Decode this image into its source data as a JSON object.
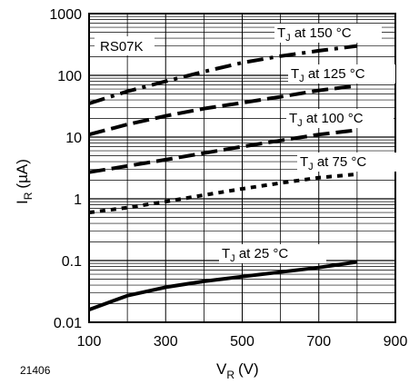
{
  "chart_data": {
    "type": "line",
    "figure_id": "21406",
    "part_label": "RS07K",
    "xlabel": {
      "main": "V",
      "sub": "R",
      "unit": "(V)"
    },
    "ylabel": {
      "main": "I",
      "sub": "R",
      "unit": "(µA)"
    },
    "xlim": [
      100,
      900
    ],
    "ylim": [
      0.01,
      1000
    ],
    "y_scale": "log",
    "grid": true,
    "x_ticks": [
      "100",
      "300",
      "500",
      "700",
      "900"
    ],
    "y_ticks": [
      "0.01",
      "0.1",
      "1",
      "10",
      "100",
      "1000"
    ],
    "series": [
      {
        "name": "T_J at 150 °C",
        "label_main": "T",
        "label_sub": "J",
        "label_rest": " at 150 °C",
        "style": "dash-dot",
        "x": [
          100,
          200,
          300,
          400,
          500,
          600,
          700,
          800
        ],
        "y": [
          35,
          55,
          80,
          115,
          160,
          205,
          250,
          300
        ]
      },
      {
        "name": "T_J at 125 °C",
        "label_main": "T",
        "label_sub": "J",
        "label_rest": " at 125 °C",
        "style": "long-dash",
        "x": [
          100,
          200,
          300,
          400,
          500,
          600,
          700,
          800
        ],
        "y": [
          11,
          16,
          22,
          29,
          36,
          45,
          57,
          68
        ]
      },
      {
        "name": "T_J at 100 °C",
        "label_main": "T",
        "label_sub": "J",
        "label_rest": " at 100 °C",
        "style": "long-dash",
        "x": [
          100,
          200,
          300,
          400,
          500,
          600,
          700,
          800
        ],
        "y": [
          2.7,
          3.4,
          4.3,
          5.5,
          7.0,
          8.8,
          11,
          13
        ]
      },
      {
        "name": "T_J at 75 °C",
        "label_main": "T",
        "label_sub": "J",
        "label_rest": " at 75 °C",
        "style": "short-dash",
        "x": [
          100,
          200,
          300,
          400,
          500,
          600,
          700,
          800
        ],
        "y": [
          0.6,
          0.72,
          0.9,
          1.15,
          1.45,
          1.8,
          2.2,
          2.5
        ]
      },
      {
        "name": "T_J at 25 °C",
        "label_main": "T",
        "label_sub": "J",
        "label_rest": " at 25 °C",
        "style": "solid",
        "x": [
          100,
          200,
          300,
          400,
          500,
          600,
          700,
          800
        ],
        "y": [
          0.016,
          0.027,
          0.037,
          0.046,
          0.055,
          0.065,
          0.077,
          0.095
        ]
      }
    ]
  }
}
